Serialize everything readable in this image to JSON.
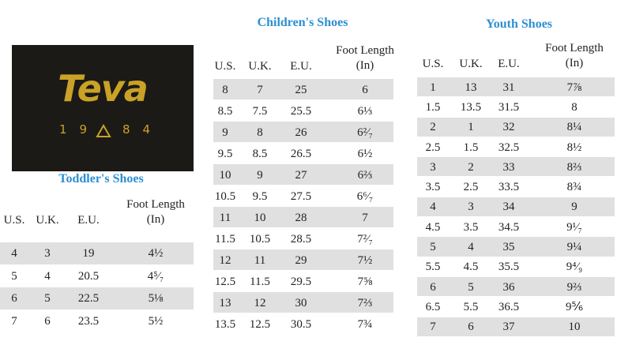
{
  "logo": {
    "wordmark": "Teva",
    "year_left": "19",
    "year_right": "84"
  },
  "tables": [
    {
      "title": "Toddler's Shoes",
      "headers": [
        "U.S.",
        "U.K.",
        "E.U.",
        "Foot Length (In)"
      ],
      "rows": [
        [
          "4",
          "3",
          "19",
          "4½"
        ],
        [
          "5",
          "4",
          "20.5",
          "4⁵⁄₇"
        ],
        [
          "6",
          "5",
          "22.5",
          "5⅛"
        ],
        [
          "7",
          "6",
          "23.5",
          "5½"
        ]
      ]
    },
    {
      "title": "Children's Shoes",
      "headers": [
        "U.S.",
        "U.K.",
        "E.U.",
        "Foot Length (In)"
      ],
      "rows": [
        [
          "8",
          "7",
          "25",
          "6"
        ],
        [
          "8.5",
          "7.5",
          "25.5",
          "6⅓"
        ],
        [
          "9",
          "8",
          "26",
          "6²⁄₇"
        ],
        [
          "9.5",
          "8.5",
          "26.5",
          "6½"
        ],
        [
          "10",
          "9",
          "27",
          "6⅔"
        ],
        [
          "10.5",
          "9.5",
          "27.5",
          "6⁶⁄₇"
        ],
        [
          "11",
          "10",
          "28",
          "7"
        ],
        [
          "11.5",
          "10.5",
          "28.5",
          "7²⁄₇"
        ],
        [
          "12",
          "11",
          "29",
          "7½"
        ],
        [
          "12.5",
          "11.5",
          "29.5",
          "7⅝"
        ],
        [
          "13",
          "12",
          "30",
          "7⅔"
        ],
        [
          "13.5",
          "12.5",
          "30.5",
          "7¾"
        ]
      ]
    },
    {
      "title": "Youth Shoes",
      "headers": [
        "U.S.",
        "U.K.",
        "E.U.",
        "Foot Length (In)"
      ],
      "rows": [
        [
          "1",
          "13",
          "31",
          "7⅞"
        ],
        [
          "1.5",
          "13.5",
          "31.5",
          "8"
        ],
        [
          "2",
          "1",
          "32",
          "8¼"
        ],
        [
          "2.5",
          "1.5",
          "32.5",
          "8½"
        ],
        [
          "3",
          "2",
          "33",
          "8⅔"
        ],
        [
          "3.5",
          "2.5",
          "33.5",
          "8¾"
        ],
        [
          "4",
          "3",
          "34",
          "9"
        ],
        [
          "4.5",
          "3.5",
          "34.5",
          "9¹⁄₇"
        ],
        [
          "5",
          "4",
          "35",
          "9¼"
        ],
        [
          "5.5",
          "4.5",
          "35.5",
          "9⁴⁄₉"
        ],
        [
          "6",
          "5",
          "36",
          "9⅔"
        ],
        [
          "6.5",
          "5.5",
          "36.5",
          "9⅚"
        ],
        [
          "7",
          "6",
          "37",
          "10"
        ]
      ]
    }
  ]
}
